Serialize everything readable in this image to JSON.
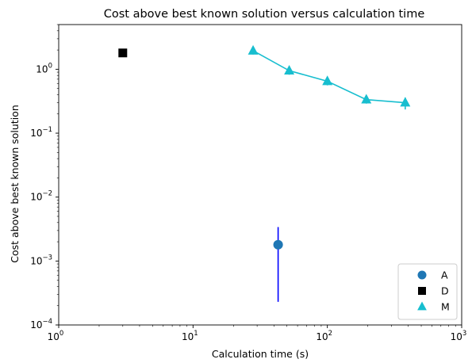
{
  "chart_data": {
    "type": "scatter",
    "title": "Cost above best known solution versus calculation time",
    "xlabel": "Calculation time (s)",
    "ylabel": "Cost above best known solution",
    "xscale": "log",
    "yscale": "log",
    "xlim": [
      1,
      1000
    ],
    "ylim": [
      0.0001,
      5
    ],
    "x_ticks": [
      {
        "value": 1,
        "base": "10",
        "exp": "0"
      },
      {
        "value": 10,
        "base": "10",
        "exp": "1"
      },
      {
        "value": 100,
        "base": "10",
        "exp": "2"
      },
      {
        "value": 1000,
        "base": "10",
        "exp": "3"
      }
    ],
    "y_ticks": [
      {
        "value": 0.0001,
        "base": "10",
        "exp": "−4"
      },
      {
        "value": 0.001,
        "base": "10",
        "exp": "−3"
      },
      {
        "value": 0.01,
        "base": "10",
        "exp": "−2"
      },
      {
        "value": 0.1,
        "base": "10",
        "exp": "−1"
      },
      {
        "value": 1,
        "base": "10",
        "exp": "0"
      }
    ],
    "legend_position": "lower right",
    "grid": false,
    "series": [
      {
        "name": "A",
        "marker": "circle",
        "color": "#1f77b4",
        "errorbar_color": "#0000ff",
        "line": false,
        "points": [
          {
            "x": 43,
            "y": 0.0018,
            "ylow": 0.00023,
            "yhigh": 0.0034
          }
        ]
      },
      {
        "name": "D",
        "marker": "square",
        "color": "#000000",
        "line": false,
        "points": [
          {
            "x": 3,
            "y": 1.8
          }
        ]
      },
      {
        "name": "M",
        "marker": "triangle",
        "color": "#17becf",
        "line": true,
        "points": [
          {
            "x": 28,
            "y": 1.95,
            "ylow": 1.7,
            "yhigh": 2.2
          },
          {
            "x": 52,
            "y": 0.95,
            "ylow": 0.82,
            "yhigh": 1.08
          },
          {
            "x": 100,
            "y": 0.65,
            "ylow": 0.56,
            "yhigh": 0.76
          },
          {
            "x": 195,
            "y": 0.335,
            "ylow": 0.29,
            "yhigh": 0.385
          },
          {
            "x": 380,
            "y": 0.3,
            "ylow": 0.235,
            "yhigh": 0.36
          }
        ]
      }
    ]
  }
}
